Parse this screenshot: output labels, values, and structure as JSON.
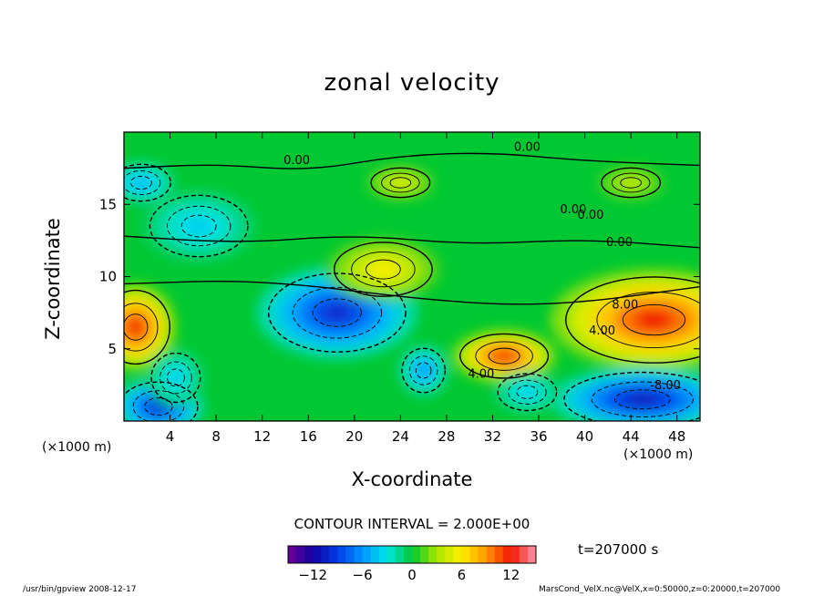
{
  "chart_data": {
    "type": "heatmap",
    "title": "zonal velocity",
    "xlabel": "X-coordinate",
    "ylabel": "Z-coordinate",
    "x_unit": "(×1000 m)",
    "y_unit": "(×1000 m)",
    "xlim": [
      0,
      50
    ],
    "ylim": [
      0,
      20
    ],
    "x_ticks": [
      "4",
      "8",
      "12",
      "16",
      "20",
      "24",
      "28",
      "32",
      "36",
      "40",
      "44",
      "48"
    ],
    "y_ticks": [
      "5",
      "10",
      "15"
    ],
    "contour_interval_label": "CONTOUR INTERVAL = 2.000E+00",
    "contour_labels": [
      "0.00",
      "0.00",
      "0.00",
      "0.00",
      "0.00",
      "4.00",
      "4.00",
      "8.00",
      "-8.00"
    ],
    "colorbar": {
      "range": [
        -15,
        15
      ],
      "tick_labels": [
        "−12",
        "−6",
        "0",
        "6",
        "12"
      ]
    },
    "features": [
      {
        "x": 18.5,
        "z": 7.5,
        "u": -10
      },
      {
        "x": 26,
        "z": 3.5,
        "u": -6
      },
      {
        "x": 33,
        "z": 4.5,
        "u": 12
      },
      {
        "x": 22.5,
        "z": 10.5,
        "u": 6
      },
      {
        "x": 46,
        "z": 7,
        "u": 12
      },
      {
        "x": 1,
        "z": 6.5,
        "u": 12
      },
      {
        "x": 45,
        "z": 1.5,
        "u": -11
      },
      {
        "x": 3,
        "z": 1,
        "u": -10
      },
      {
        "x": 1.5,
        "z": 16.5,
        "u": -5
      },
      {
        "x": 6.5,
        "z": 13.5,
        "u": -4
      },
      {
        "x": 24,
        "z": 16.5,
        "u": 5
      },
      {
        "x": 44,
        "z": 16.5,
        "u": 4
      },
      {
        "x": 4.5,
        "z": 3,
        "u": -4
      },
      {
        "x": 35,
        "z": 2,
        "u": -4
      }
    ],
    "time_label": "t=207000 s"
  },
  "footer": {
    "left": "/usr/bin/gpview   2008-12-17",
    "right": "MarsCond_VelX.nc@VelX,x=0:50000,z=0:20000,t=207000"
  },
  "colors": {
    "background": "#00c832",
    "frame": "#000000"
  }
}
